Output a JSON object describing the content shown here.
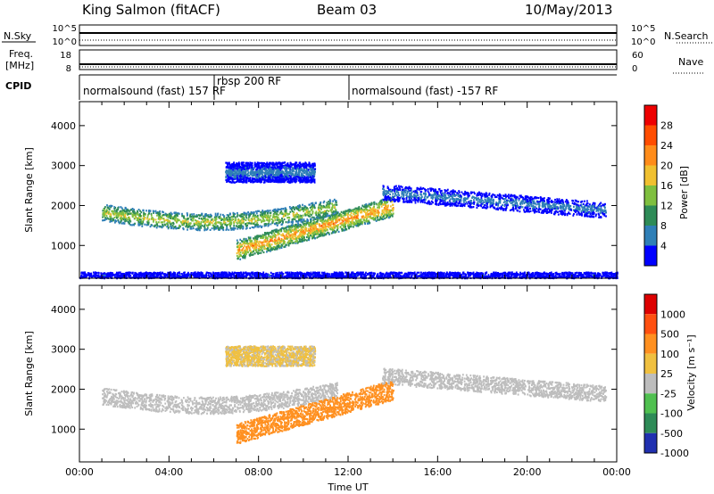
{
  "header": {
    "station": "King Salmon (fitACF)",
    "beam": "Beam 03",
    "date": "10/May/2013"
  },
  "top_panels": {
    "nsky": {
      "label": "N.Sky",
      "left_ticks": [
        "10^5",
        "10^0"
      ],
      "right_label": "N.Search",
      "right_ticks": [
        "10^5",
        "10^0"
      ]
    },
    "freq": {
      "label_line1": "Freq.",
      "label_line2": "[MHz]",
      "left_ticks": [
        "18",
        "8"
      ],
      "right_label": "Nave",
      "right_ticks": [
        "60",
        "0"
      ]
    },
    "cpid": {
      "label": "CPID",
      "segments": [
        {
          "text": "normalsound (fast) 157 RF",
          "start_hour": 0,
          "end_hour": 6
        },
        {
          "text": "rbsp 200 RF",
          "start_hour": 6,
          "end_hour": 12
        },
        {
          "text": "normalsound (fast) -157 RF",
          "start_hour": 12,
          "end_hour": 24
        }
      ]
    }
  },
  "colors": {
    "power_scale": [
      "#0000ff",
      "#2f7fb7",
      "#2e8b57",
      "#7fbf3f",
      "#f0c030",
      "#ff8c1a",
      "#ff4d00",
      "#ee0000"
    ],
    "velocity_scale": [
      "#2030b0",
      "#2e8b57",
      "#50c050",
      "#bdbdbd",
      "#f0c040",
      "#ff9020",
      "#ff5010",
      "#dd0000"
    ]
  },
  "chart_data": [
    {
      "type": "heatmap",
      "ylabel": "Slant Range [km]",
      "xlabel": "Time UT",
      "x_ticks": [
        "00:00",
        "04:00",
        "08:00",
        "12:00",
        "16:00",
        "20:00",
        "00:00"
      ],
      "x_range_hours": [
        0,
        24
      ],
      "ylim": [
        180,
        4600
      ],
      "y_ticks": [
        1000,
        2000,
        3000,
        4000
      ],
      "colorbar": {
        "label": "Power [dB]",
        "ticks": [
          "4",
          "8",
          "12",
          "16",
          "20",
          "24",
          "28"
        ],
        "range": [
          0,
          30
        ]
      },
      "scatter_regions": [
        {
          "name": "main band",
          "hours": [
            1,
            11.5
          ],
          "range_km": [
            1500,
            2100
          ],
          "peak_power_db": 18
        },
        {
          "name": "descending echo",
          "hours": [
            7,
            14
          ],
          "range_km": [
            800,
            2300
          ],
          "peak_power_db": 24
        },
        {
          "name": "upper patch",
          "hours": [
            6.5,
            10.5
          ],
          "range_km": [
            2600,
            3100
          ],
          "peak_power_db": 6
        },
        {
          "name": "late band",
          "hours": [
            13.5,
            23.5
          ],
          "range_km": [
            1800,
            2500
          ],
          "peak_power_db": 6
        },
        {
          "name": "ground scatter floor",
          "hours": [
            0,
            24
          ],
          "range_km": [
            200,
            350
          ],
          "peak_power_db": 4
        }
      ]
    },
    {
      "type": "heatmap",
      "ylabel": "Slant Range [km]",
      "xlabel": "Time UT",
      "x_ticks": [
        "00:00",
        "04:00",
        "08:00",
        "12:00",
        "16:00",
        "20:00",
        "00:00"
      ],
      "x_range_hours": [
        0,
        24
      ],
      "ylim": [
        180,
        4600
      ],
      "y_ticks": [
        1000,
        2000,
        3000,
        4000
      ],
      "colorbar": {
        "label": "Velocity [m s⁻¹]",
        "ticks": [
          "1000",
          "500",
          "100",
          "25",
          "-25",
          "-100",
          "-500",
          "-1000"
        ],
        "range": [
          -1000,
          1000
        ]
      },
      "scatter_regions": [
        {
          "name": "main band",
          "hours": [
            1,
            11.5
          ],
          "range_km": [
            1500,
            2100
          ],
          "velocity_ms": 0
        },
        {
          "name": "descending echo",
          "hours": [
            7,
            14
          ],
          "range_km": [
            800,
            2300
          ],
          "velocity_ms": -200
        },
        {
          "name": "upper patch",
          "hours": [
            6.5,
            10.5
          ],
          "range_km": [
            2600,
            3100
          ],
          "velocity_ms": -50
        },
        {
          "name": "late band",
          "hours": [
            13.5,
            23.5
          ],
          "range_km": [
            1800,
            2500
          ],
          "velocity_ms": 0
        }
      ]
    }
  ]
}
